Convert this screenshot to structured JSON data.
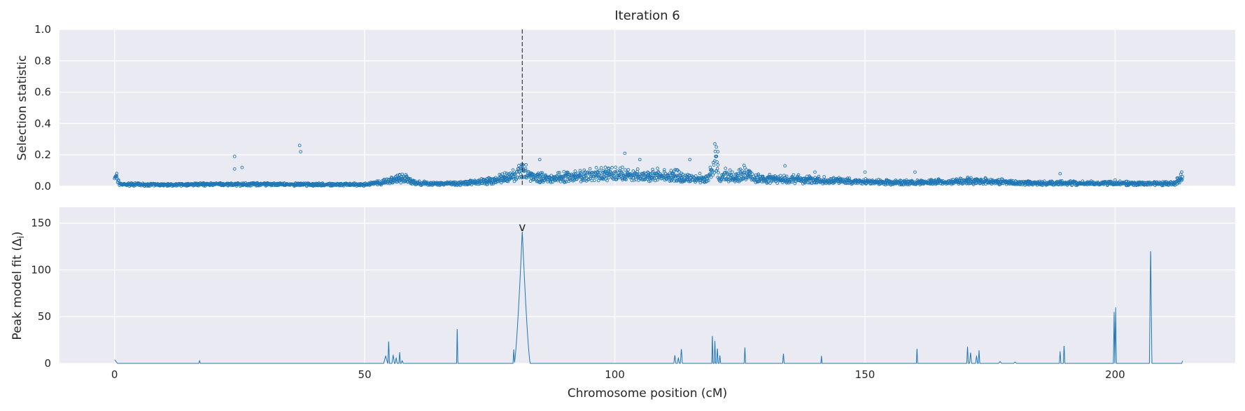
{
  "chart_data": [
    {
      "type": "scatter",
      "title": "Iteration 6",
      "xlabel": "",
      "ylabel": "Selection statistic",
      "xlim": [
        -11,
        224
      ],
      "ylim": [
        0,
        1.0
      ],
      "yticks": [
        0.0,
        0.2,
        0.4,
        0.6,
        0.8,
        1.0
      ],
      "ytick_labels": [
        "0.0",
        "0.2",
        "0.4",
        "0.6",
        "0.8",
        "1.0"
      ],
      "grid": true,
      "marker_color": "#1f77b4",
      "marker": "hollow-circle",
      "vertical_line": {
        "x": 81.5,
        "style": "dashed",
        "color": "#262626"
      },
      "baseline_profile": [
        [
          0,
          0.08
        ],
        [
          1,
          0.012
        ],
        [
          10,
          0.008
        ],
        [
          20,
          0.012
        ],
        [
          30,
          0.012
        ],
        [
          40,
          0.01
        ],
        [
          50,
          0.01
        ],
        [
          53,
          0.02
        ],
        [
          55,
          0.035
        ],
        [
          58,
          0.045
        ],
        [
          60,
          0.02
        ],
        [
          65,
          0.012
        ],
        [
          70,
          0.02
        ],
        [
          75,
          0.03
        ],
        [
          79,
          0.05
        ],
        [
          81,
          0.08
        ],
        [
          82,
          0.1
        ],
        [
          83,
          0.055
        ],
        [
          86,
          0.045
        ],
        [
          90,
          0.05
        ],
        [
          95,
          0.06
        ],
        [
          100,
          0.07
        ],
        [
          105,
          0.06
        ],
        [
          110,
          0.06
        ],
        [
          115,
          0.05
        ],
        [
          118,
          0.04
        ],
        [
          119,
          0.06
        ],
        [
          120,
          0.16
        ],
        [
          121,
          0.04
        ],
        [
          122,
          0.07
        ],
        [
          124,
          0.04
        ],
        [
          126,
          0.08
        ],
        [
          128,
          0.05
        ],
        [
          130,
          0.04
        ],
        [
          135,
          0.04
        ],
        [
          140,
          0.035
        ],
        [
          150,
          0.025
        ],
        [
          160,
          0.02
        ],
        [
          170,
          0.03
        ],
        [
          175,
          0.03
        ],
        [
          180,
          0.018
        ],
        [
          190,
          0.018
        ],
        [
          200,
          0.018
        ],
        [
          205,
          0.015
        ],
        [
          212,
          0.015
        ],
        [
          213,
          0.05
        ]
      ],
      "outliers": [
        [
          24,
          0.19
        ],
        [
          24,
          0.11
        ],
        [
          25.5,
          0.12
        ],
        [
          37,
          0.26
        ],
        [
          37.2,
          0.22
        ],
        [
          85,
          0.17
        ],
        [
          102,
          0.21
        ],
        [
          105,
          0.17
        ],
        [
          120,
          0.27
        ],
        [
          120.3,
          0.25
        ],
        [
          120.6,
          0.22
        ],
        [
          115,
          0.17
        ],
        [
          134,
          0.13
        ],
        [
          140,
          0.09
        ],
        [
          150,
          0.09
        ],
        [
          160,
          0.09
        ],
        [
          189,
          0.08
        ],
        [
          200,
          0.04
        ]
      ]
    },
    {
      "type": "line",
      "title": "",
      "xlabel": "Chromosome position (cM)",
      "ylabel": "Peak model fit (Δ",
      "ylabel_subscript": "i",
      "ylabel_suffix": ")",
      "xlim": [
        -11,
        224
      ],
      "ylim": [
        0,
        167
      ],
      "xticks": [
        0,
        50,
        100,
        150,
        200
      ],
      "xtick_labels": [
        "0",
        "50",
        "100",
        "150",
        "200"
      ],
      "yticks": [
        0,
        50,
        100,
        150
      ],
      "ytick_labels": [
        "0",
        "50",
        "100",
        "150"
      ],
      "grid": true,
      "line_color": "#1f77b4",
      "peak_marker": {
        "x": 81.5,
        "y": 140,
        "label": "v"
      },
      "spikes": [
        [
          0,
          4,
          0.6
        ],
        [
          17,
          3,
          0.15
        ],
        [
          54.2,
          8,
          0.4
        ],
        [
          54.8,
          25,
          0.15
        ],
        [
          55.7,
          9,
          0.25
        ],
        [
          56.3,
          6,
          0.2
        ],
        [
          57,
          12,
          0.15
        ],
        [
          57.5,
          3,
          0.2
        ],
        [
          68.5,
          40,
          0.12
        ],
        [
          79.8,
          15,
          0.15
        ],
        [
          112,
          9,
          0.2
        ],
        [
          112.7,
          6,
          0.2
        ],
        [
          113.3,
          16,
          0.2
        ],
        [
          119.5,
          32,
          0.12
        ],
        [
          120,
          24,
          0.15
        ],
        [
          120.5,
          17,
          0.15
        ],
        [
          121,
          9,
          0.15
        ],
        [
          126,
          17,
          0.15
        ],
        [
          133.7,
          11,
          0.15
        ],
        [
          141.3,
          8,
          0.12
        ],
        [
          160.4,
          17,
          0.12
        ],
        [
          170.5,
          19,
          0.15
        ],
        [
          171.1,
          12,
          0.2
        ],
        [
          172.3,
          8,
          0.2
        ],
        [
          172.8,
          14,
          0.15
        ],
        [
          177,
          2,
          0.3
        ],
        [
          180,
          1.5,
          0.3
        ],
        [
          189,
          13,
          0.15
        ],
        [
          189.8,
          20,
          0.15
        ],
        [
          199.8,
          55,
          0.15
        ],
        [
          200.1,
          60,
          0.15
        ],
        [
          207.1,
          125,
          0.25
        ],
        [
          213.5,
          3,
          0.2
        ]
      ],
      "main_peak": {
        "x": 81.5,
        "height": 142,
        "halfwidth": 1.6
      }
    }
  ]
}
